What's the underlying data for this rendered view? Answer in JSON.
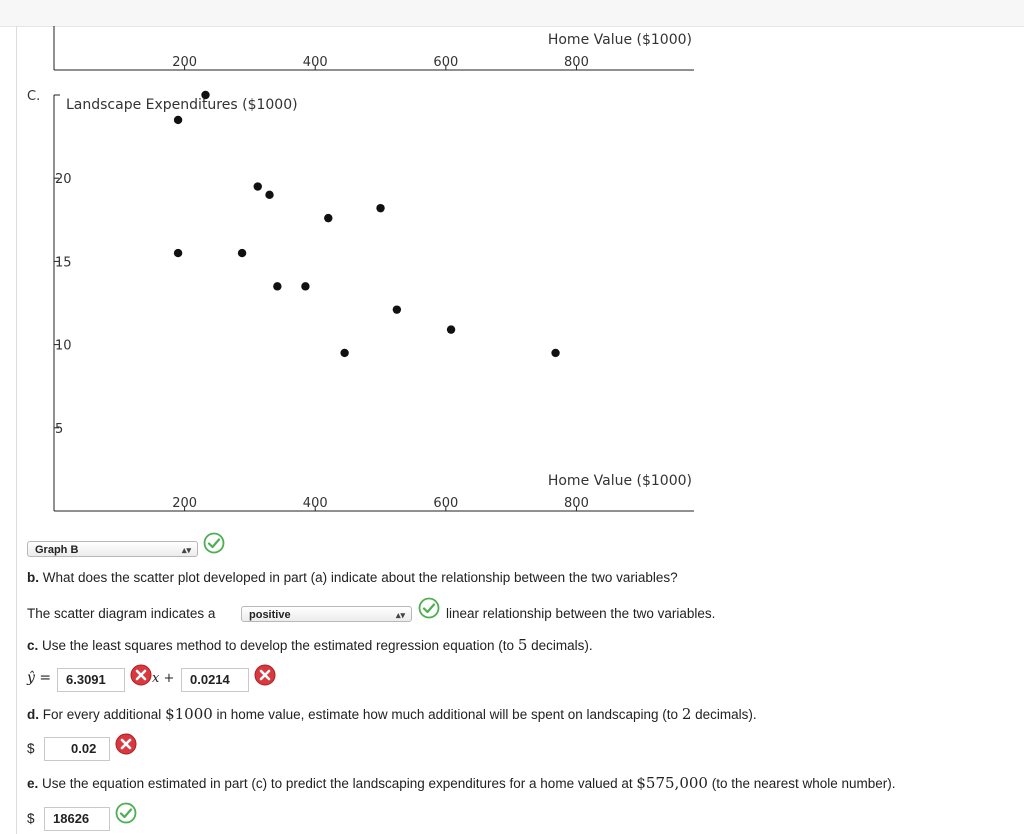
{
  "plots": {
    "graph_c_label": "C.",
    "top_axis": {
      "xlabel": "Home Value ($1000)",
      "xticks": [
        "200",
        "400",
        "600",
        "800"
      ]
    },
    "chart_data": {
      "type": "scatter",
      "ylabel": "Landscape Expenditures ($1000)",
      "xlabel": "Home Value ($1000)",
      "xticks": [
        "200",
        "400",
        "600",
        "800"
      ],
      "yticks": [
        "5",
        "10",
        "15",
        "20"
      ],
      "xlim": [
        0,
        980
      ],
      "ylim": [
        0,
        25
      ],
      "points": [
        {
          "x": 190,
          "y": 23.5
        },
        {
          "x": 232,
          "y": 25
        },
        {
          "x": 190,
          "y": 15.5
        },
        {
          "x": 288,
          "y": 15.5
        },
        {
          "x": 312,
          "y": 19.5
        },
        {
          "x": 330,
          "y": 19
        },
        {
          "x": 342,
          "y": 13.5
        },
        {
          "x": 385,
          "y": 13.5
        },
        {
          "x": 420,
          "y": 17.6
        },
        {
          "x": 445,
          "y": 9.5
        },
        {
          "x": 500,
          "y": 18.2
        },
        {
          "x": 525,
          "y": 12.1
        },
        {
          "x": 608,
          "y": 10.9
        },
        {
          "x": 768,
          "y": 9.5
        }
      ]
    }
  },
  "graph_select": {
    "value": "Graph B",
    "status_icon": "check-icon"
  },
  "question_b": {
    "prompt_prefix": "b.",
    "prompt": " What does the scatter plot developed in part (a) indicate about the relationship between the two variables?",
    "sentence_before": "The scatter diagram indicates a",
    "select_value": "positive",
    "sentence_after": "linear relationship between the two variables.",
    "status_icon": "check-icon"
  },
  "question_c": {
    "prompt_prefix": "c.",
    "prompt_before": " Use the least squares method to develop the estimated regression equation (to ",
    "prompt_num": "5",
    "prompt_after": " decimals).",
    "yhat": "ŷ =",
    "intercept_value": "6.3091",
    "intercept_status_icon": "x-icon",
    "x_term": "x +",
    "slope_value": "0.0214",
    "slope_status_icon": "x-icon"
  },
  "question_d": {
    "prompt_prefix": "d.",
    "prompt_before": " For every additional ",
    "prompt_amount": "$1000",
    "prompt_middle": " in home value, estimate how much additional will be spent on landscaping (to ",
    "prompt_num": "2",
    "prompt_after": " decimals).",
    "currency": "$",
    "value": "0.02",
    "status_icon": "x-icon"
  },
  "question_e": {
    "prompt_prefix": "e.",
    "prompt_before": " Use the equation estimated in part (c) to predict the landscaping expenditures for a home valued at ",
    "prompt_amount": "$575,000",
    "prompt_after": " (to the nearest whole number).",
    "currency": "$",
    "value": "18626",
    "status_icon": "check-icon"
  },
  "colors": {
    "correct": "#4caf50",
    "incorrect": "#d9383e",
    "marker": "#111111"
  }
}
